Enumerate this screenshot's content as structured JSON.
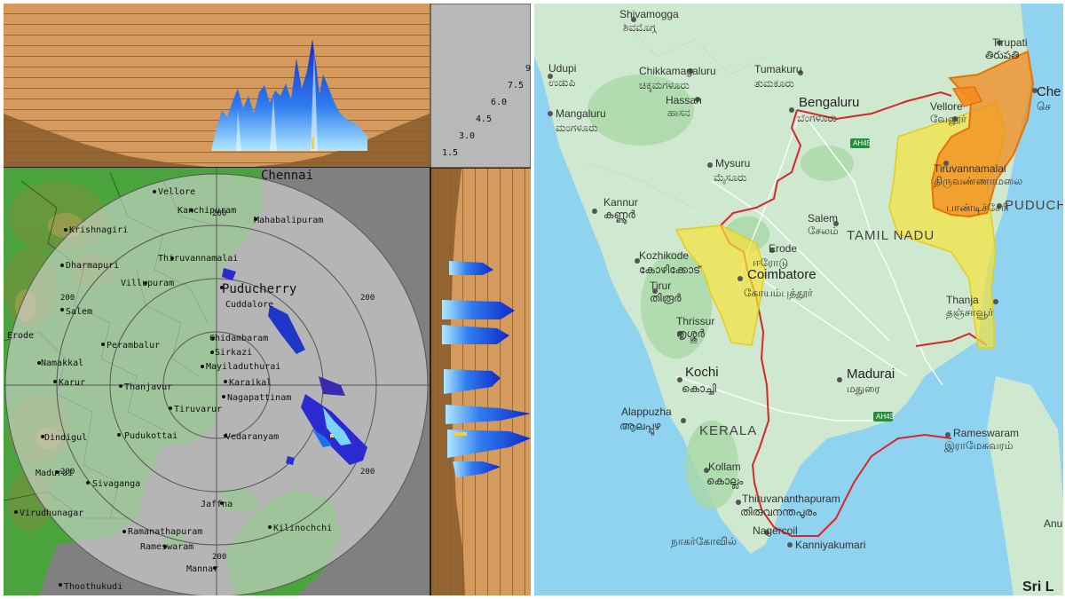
{
  "radar": {
    "height_scale": [
      "9",
      "7.5",
      "6.0",
      "4.5",
      "3.0",
      "1.5"
    ],
    "range_ring_label": "200",
    "places": {
      "chennai": "Chennai",
      "vellore": "Vellore",
      "kanchipuram": "Kanchipuram",
      "mahabalipuram": "Mahabalipuram",
      "krishnagiri": "Krishnagiri",
      "dharmapuri": "Dharmapuri",
      "tiruvannamalai": "Thiruvannamalai",
      "villupuram": "Villupuram",
      "puducherry": "Puducherry",
      "cuddalore": "Cuddalore",
      "salem": "Salem",
      "perambalur": "Perambalur",
      "erode": "Erode",
      "chidambaram": "Chidambaram",
      "sirkazi": "Sirkazi",
      "mayiladuthurai": "Mayiladuthurai",
      "namakkal": "Namakkal",
      "karur": "Karur",
      "karaikal": "Karaikal",
      "nagapattinam": "Nagapattinam",
      "thanjavur": "Thanjavur",
      "tiruvarur": "Tiruvarur",
      "dindigul": "Dindigul",
      "pudukottai": "Pudukottai",
      "vedaranyam": "Vedaranyam",
      "madurai": "Madurai",
      "sivaganga": "Sivaganga",
      "jaffna": "Jaffna",
      "virudhunagar": "Virudhunagar",
      "kilinochchi": "Kilinochchi",
      "ramanathapuram": "Ramanathapuram",
      "rameswaram": "Rameswaram",
      "mannar": "Mannar",
      "thoothukudi": "Thoothukudi"
    }
  },
  "map": {
    "places": {
      "shivamogga_en": "Shivamogga",
      "shivamogga_kn": "ಶಿವಮೊಗ್ಗ",
      "tirupati_en": "Tirupati",
      "tirupati_te": "తిరుపతి",
      "udupi_en": "Udupi",
      "udupi_kn": "ಉಡುಪಿ",
      "chikkamagaluru_en": "Chikkamagaluru",
      "chikkamagaluru_kn": "ಚಿಕ್ಕಮಗಳೂರು",
      "tumakuru_en": "Tumakuru",
      "tumakuru_kn": "ತುಮಕೂರು",
      "hassan_en": "Hassan",
      "hassan_kn": "ಹಾಸನ",
      "mangaluru_en": "Mangaluru",
      "mangaluru_kn": "ಮಂಗಳೂರು",
      "bengaluru_en": "Bengaluru",
      "bengaluru_kn": "ಬೆಂಗಳೂರು",
      "chennai_en": "Che",
      "chennai_ta": "செ",
      "vellore_en": "Vellore",
      "vellore_ta": "வேலூர்",
      "mysuru_en": "Mysuru",
      "mysuru_kn": "ಮೈಸೂರು",
      "tiruvannamalai_en": "Tiruvannamalai",
      "tiruvannamalai_ta": "திருவண்ணாமலை",
      "puducherry_ta": "பாண்டிச்சேரி",
      "puducherry_en": "PUDUCHE",
      "kannur_en": "Kannur",
      "kannur_ml": "കണ്ണൂർ",
      "salem_en": "Salem",
      "salem_ta": "சேலம்",
      "tamilnadu": "TAMIL NADU",
      "kozhikode_en": "Kozhikode",
      "kozhikode_ml": "കോഴിക്കോട്",
      "erode_en": "Erode",
      "erode_ta": "ஈரோடு",
      "coimbatore_en": "Coimbatore",
      "coimbatore_ta": "கோயம்புத்தூர்",
      "tirur_en": "Tirur",
      "tirur_ml": "തിരൂർ",
      "thrissur_en": "Thrissur",
      "thrissur_ml": "തൃശ്ശൂർ",
      "thanjavur_en": "Thanja",
      "thanjavur_ta": "தஞ்சாவூர்",
      "kochi_en": "Kochi",
      "kochi_ml": "കൊച്ചി",
      "madurai_en": "Madurai",
      "madurai_ta": "மதுரை",
      "alappuzha_en": "Alappuzha",
      "alappuzha_ml": "ആലപ്പുഴ",
      "kerala": "KERALA",
      "rameswaram_en": "Rameswaram",
      "rameswaram_ta": "இராமேசுவரம்",
      "kollam_en": "Kollam",
      "kollam_ml": "കൊല്ലം",
      "thiruvananthapuram_en": "Thiruvananthapuram",
      "thiruvananthapuram_ml": "തിരുവനന്തപുരം",
      "nagercoil_en": "Nagercoil",
      "nagercoil_ta": "நாகர்கோவில்",
      "kanniyakumari_en": "Kanniyakumari",
      "srilanka": "Sri L",
      "anu": "Anu"
    },
    "roads": {
      "ah45": "AH45",
      "ah43": "AH43"
    },
    "colors": {
      "orange_alert": "#f28b1e",
      "yellow_alert": "#f5e33a",
      "state_border": "#d9252b",
      "sea": "#8fd3f0"
    }
  }
}
